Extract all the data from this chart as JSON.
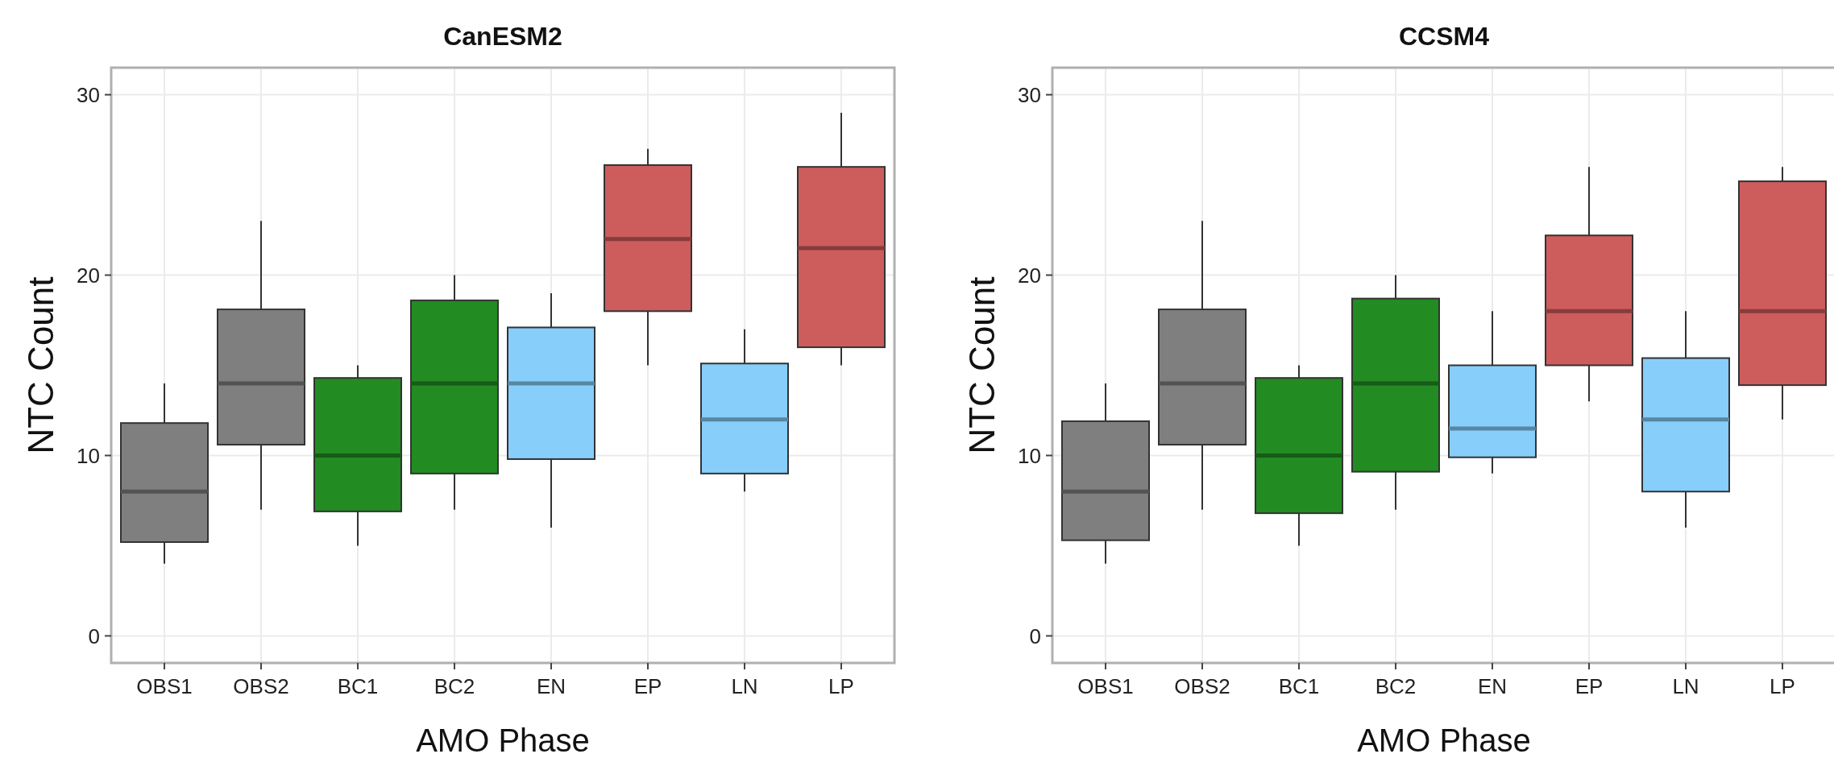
{
  "chart_data": [
    {
      "type": "box",
      "title": "CanESM2",
      "xlabel": "AMO Phase",
      "ylabel": "NTC Count",
      "categories": [
        "OBS1",
        "OBS2",
        "BC1",
        "BC2",
        "EN",
        "EP",
        "LN",
        "LP"
      ],
      "colors": [
        "#7f7f7f",
        "#7f7f7f",
        "#228b22",
        "#228b22",
        "#87cefa",
        "#cd5c5c",
        "#87cefa",
        "#cd5c5c"
      ],
      "ylim": [
        -1.5,
        31.5
      ],
      "yticks": [
        0,
        10,
        20,
        30
      ],
      "grid": true,
      "boxes": [
        {
          "low": 4,
          "q1": 5.2,
          "median": 8,
          "q3": 11.8,
          "high": 14
        },
        {
          "low": 7,
          "q1": 10.6,
          "median": 14,
          "q3": 18.1,
          "high": 23
        },
        {
          "low": 5,
          "q1": 6.9,
          "median": 10,
          "q3": 14.3,
          "high": 15
        },
        {
          "low": 7,
          "q1": 9,
          "median": 14,
          "q3": 18.6,
          "high": 20
        },
        {
          "low": 6,
          "q1": 9.8,
          "median": 14,
          "q3": 17.1,
          "high": 19
        },
        {
          "low": 15,
          "q1": 18,
          "median": 22,
          "q3": 26.1,
          "high": 27
        },
        {
          "low": 8,
          "q1": 9,
          "median": 12,
          "q3": 15.1,
          "high": 17
        },
        {
          "low": 15,
          "q1": 16,
          "median": 21.5,
          "q3": 26,
          "high": 29
        }
      ]
    },
    {
      "type": "box",
      "title": "CCSM4",
      "xlabel": "AMO Phase",
      "ylabel": "NTC Count",
      "categories": [
        "OBS1",
        "OBS2",
        "BC1",
        "BC2",
        "EN",
        "EP",
        "LN",
        "LP"
      ],
      "colors": [
        "#7f7f7f",
        "#7f7f7f",
        "#228b22",
        "#228b22",
        "#87cefa",
        "#cd5c5c",
        "#87cefa",
        "#cd5c5c"
      ],
      "ylim": [
        -1.5,
        31.5
      ],
      "yticks": [
        0,
        10,
        20,
        30
      ],
      "grid": true,
      "boxes": [
        {
          "low": 4,
          "q1": 5.3,
          "median": 8,
          "q3": 11.9,
          "high": 14
        },
        {
          "low": 7,
          "q1": 10.6,
          "median": 14,
          "q3": 18.1,
          "high": 23
        },
        {
          "low": 5,
          "q1": 6.8,
          "median": 10,
          "q3": 14.3,
          "high": 15
        },
        {
          "low": 7,
          "q1": 9.1,
          "median": 14,
          "q3": 18.7,
          "high": 20
        },
        {
          "low": 9,
          "q1": 9.9,
          "median": 11.5,
          "q3": 15,
          "high": 18
        },
        {
          "low": 13,
          "q1": 15,
          "median": 18,
          "q3": 22.2,
          "high": 26
        },
        {
          "low": 6,
          "q1": 8,
          "median": 12,
          "q3": 15.4,
          "high": 18
        },
        {
          "low": 12,
          "q1": 13.9,
          "median": 18,
          "q3": 25.2,
          "high": 26
        }
      ]
    }
  ]
}
